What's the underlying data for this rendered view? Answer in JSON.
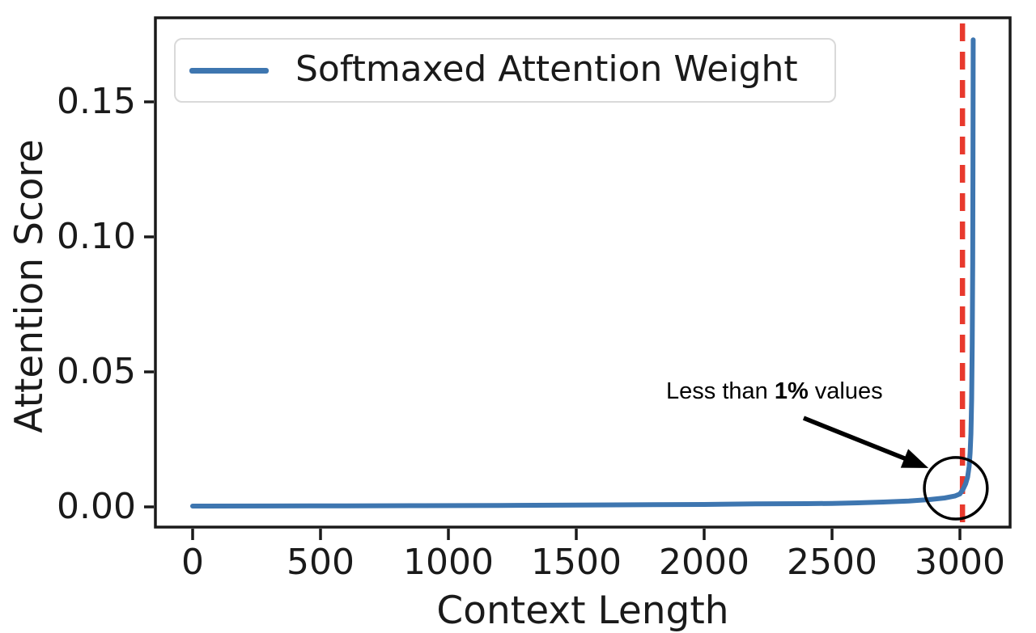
{
  "chart_data": {
    "type": "line",
    "title": "",
    "xlabel": "Context Length",
    "ylabel": "Attention Score",
    "x_ticks": [
      "0",
      "500",
      "1000",
      "1500",
      "2000",
      "2500",
      "3000"
    ],
    "x_tick_values": [
      0,
      500,
      1000,
      1500,
      2000,
      2500,
      3000
    ],
    "y_ticks": [
      "0.00",
      "0.05",
      "0.10",
      "0.15"
    ],
    "y_tick_values": [
      0,
      0.05,
      0.1,
      0.15
    ],
    "xlim": [
      -146,
      3196
    ],
    "ylim": [
      -0.0075,
      0.181
    ],
    "grid": false,
    "legend": {
      "position": "upper left",
      "entries": [
        {
          "label": "Softmaxed Attention Weight",
          "color": "#3e76b0"
        }
      ]
    },
    "series": [
      {
        "name": "Softmaxed Attention Weight",
        "color": "#3e76b0",
        "points": [
          [
            0,
            0.0003
          ],
          [
            300,
            0.00033
          ],
          [
            600,
            0.00038
          ],
          [
            900,
            0.00045
          ],
          [
            1200,
            0.00055
          ],
          [
            1500,
            0.0007
          ],
          [
            1800,
            0.0008
          ],
          [
            2000,
            0.0009
          ],
          [
            2200,
            0.0011
          ],
          [
            2400,
            0.0012
          ],
          [
            2500,
            0.0013
          ],
          [
            2600,
            0.0015
          ],
          [
            2700,
            0.0018
          ],
          [
            2800,
            0.0022
          ],
          [
            2880,
            0.0027
          ],
          [
            2940,
            0.0033
          ],
          [
            2980,
            0.004
          ],
          [
            3000,
            0.0048
          ],
          [
            3012,
            0.0065
          ],
          [
            3022,
            0.0085
          ],
          [
            3030,
            0.011
          ],
          [
            3036,
            0.015
          ],
          [
            3040,
            0.02
          ],
          [
            3043,
            0.027
          ],
          [
            3046,
            0.04
          ],
          [
            3048,
            0.06
          ],
          [
            3050,
            0.09
          ],
          [
            3051,
            0.125
          ],
          [
            3052,
            0.173
          ]
        ]
      }
    ],
    "vline": {
      "x": 3010,
      "color": "#e8392d",
      "style": "dashed"
    },
    "annotation": {
      "prefix": "Less than ",
      "bold": "1%",
      "suffix": " values",
      "color": "#000000",
      "circle": {
        "cx": 2984,
        "cy": 0.0069,
        "rx": 123,
        "ry": 0.0114
      },
      "arrow": {
        "from": [
          2389,
          0.0329
        ],
        "to": [
          2877,
          0.0144
        ]
      }
    },
    "frame_color": "#1a1a1a"
  }
}
